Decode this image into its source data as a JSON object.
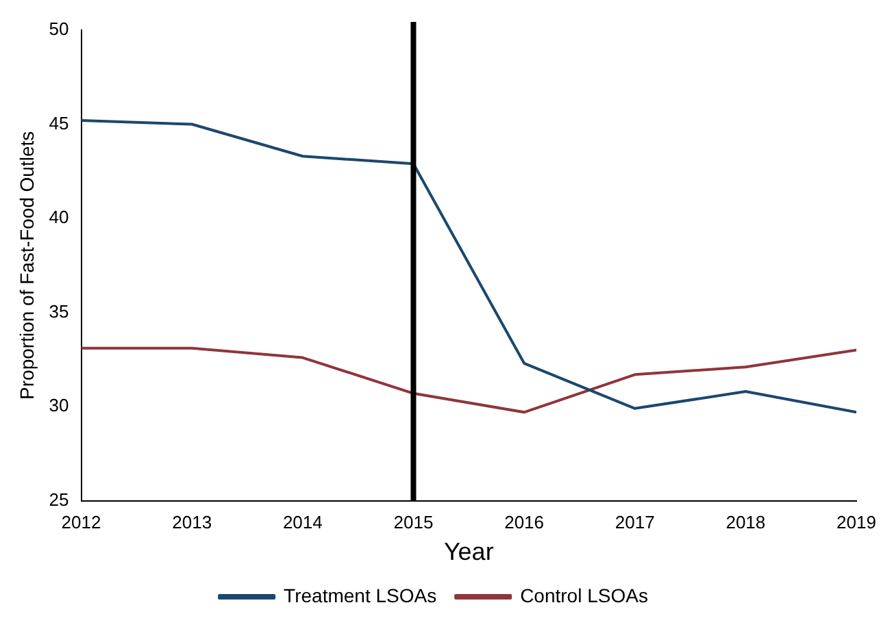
{
  "chart_data": {
    "type": "line",
    "xlabel": "Year",
    "ylabel": "Proportion of Fast-Food Outlets",
    "x": [
      2012,
      2013,
      2014,
      2015,
      2016,
      2017,
      2018,
      2019
    ],
    "series": [
      {
        "name": "Treatment LSOAs",
        "color": "#1a476f",
        "values": [
          45.2,
          45.0,
          43.3,
          42.9,
          32.3,
          29.9,
          30.8,
          29.7
        ]
      },
      {
        "name": "Control LSOAs",
        "color": "#90353b",
        "values": [
          33.1,
          33.1,
          32.6,
          30.7,
          29.7,
          31.7,
          32.1,
          33.0
        ]
      }
    ],
    "xlim": [
      2012,
      2019
    ],
    "xticks": [
      2012,
      2013,
      2014,
      2015,
      2016,
      2017,
      2018,
      2019
    ],
    "ylim": [
      25,
      50
    ],
    "yticks": [
      25,
      30,
      35,
      40,
      45,
      50
    ],
    "ref_lines": [
      {
        "axis": "x",
        "value": 2015,
        "color": "#000000"
      }
    ],
    "grid": false,
    "legend": "bottom",
    "marker": "none",
    "line_style": "solid"
  }
}
